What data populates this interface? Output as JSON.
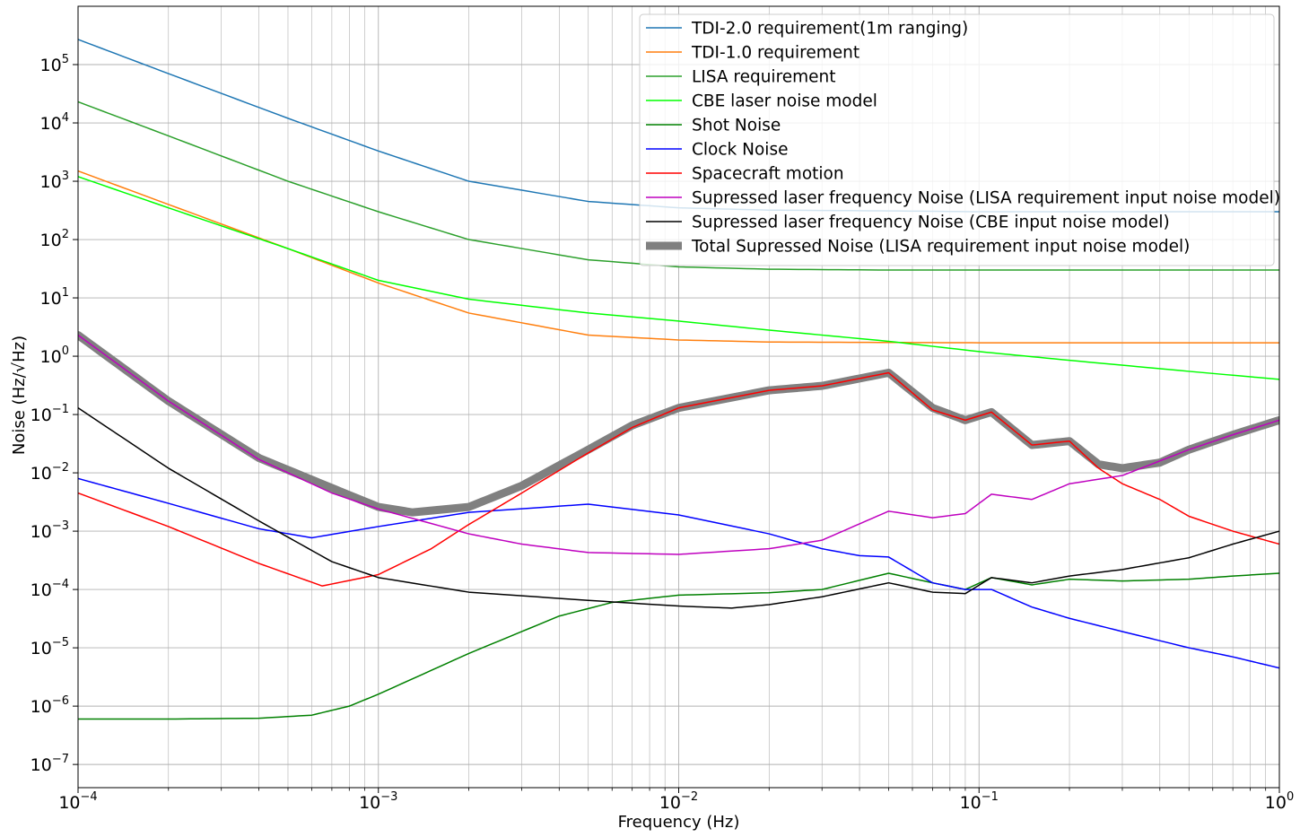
{
  "chart_data": {
    "type": "line",
    "title": "",
    "xlabel": "Frequency (Hz)",
    "ylabel": "Noise (Hz/√Hz)",
    "xscale": "log",
    "yscale": "log",
    "xlim": [
      0.0001,
      1
    ],
    "ylim": [
      4e-08,
      1000000.0
    ],
    "grid": true,
    "legend_position": "top-right",
    "x_ticks": [
      {
        "value": 0.0001,
        "base": "10",
        "exp": "−4"
      },
      {
        "value": 0.001,
        "base": "10",
        "exp": "−3"
      },
      {
        "value": 0.01,
        "base": "10",
        "exp": "−2"
      },
      {
        "value": 0.1,
        "base": "10",
        "exp": "−1"
      },
      {
        "value": 1,
        "base": "10",
        "exp": "0"
      }
    ],
    "y_ticks": [
      {
        "value": 1e-07,
        "base": "10",
        "exp": "−7"
      },
      {
        "value": 1e-06,
        "base": "10",
        "exp": "−6"
      },
      {
        "value": 1e-05,
        "base": "10",
        "exp": "−5"
      },
      {
        "value": 0.0001,
        "base": "10",
        "exp": "−4"
      },
      {
        "value": 0.001,
        "base": "10",
        "exp": "−3"
      },
      {
        "value": 0.01,
        "base": "10",
        "exp": "−2"
      },
      {
        "value": 0.1,
        "base": "10",
        "exp": "−1"
      },
      {
        "value": 1,
        "base": "10",
        "exp": "0"
      },
      {
        "value": 10,
        "base": "10",
        "exp": "1"
      },
      {
        "value": 100,
        "base": "10",
        "exp": "2"
      },
      {
        "value": 1000,
        "base": "10",
        "exp": "3"
      },
      {
        "value": 10000,
        "base": "10",
        "exp": "4"
      },
      {
        "value": 100000,
        "base": "10",
        "exp": "5"
      }
    ],
    "series": [
      {
        "name": "TDI-2.0 requirement(1m ranging)",
        "color": "#1f77b4",
        "width": 1.5,
        "x": [
          0.0001,
          0.0002,
          0.0005,
          0.001,
          0.002,
          0.005,
          0.01,
          0.02,
          0.05,
          0.1,
          0.2,
          0.5,
          1
        ],
        "y": [
          270000,
          70000,
          12000,
          3300,
          1000,
          450,
          350,
          320,
          310,
          300,
          300,
          300,
          300
        ]
      },
      {
        "name": "TDI-1.0 requirement",
        "color": "#ff7f0e",
        "width": 1.5,
        "x": [
          0.0001,
          0.0002,
          0.0005,
          0.001,
          0.002,
          0.005,
          0.01,
          0.02,
          0.05,
          0.1,
          0.2,
          0.5,
          1
        ],
        "y": [
          1500,
          400,
          70,
          18,
          5.5,
          2.3,
          1.9,
          1.75,
          1.72,
          1.7,
          1.7,
          1.7,
          1.7
        ]
      },
      {
        "name": "LISA requirement",
        "color": "#2ca02c",
        "width": 1.5,
        "x": [
          0.0001,
          0.0002,
          0.0005,
          0.001,
          0.002,
          0.005,
          0.01,
          0.02,
          0.05,
          0.1,
          0.2,
          0.5,
          1
        ],
        "y": [
          23000,
          6000,
          1000,
          300,
          100,
          45,
          34,
          31,
          30,
          30,
          30,
          30,
          30
        ]
      },
      {
        "name": "CBE laser noise model",
        "color": "#00ff00",
        "width": 1.5,
        "x": [
          0.0001,
          0.0002,
          0.0005,
          0.001,
          0.002,
          0.005,
          0.01,
          0.02,
          0.05,
          0.1,
          0.2,
          0.5,
          1
        ],
        "y": [
          1200,
          350,
          70,
          20,
          9.5,
          5.5,
          4,
          2.8,
          1.8,
          1.2,
          0.85,
          0.55,
          0.4
        ]
      },
      {
        "name": "Shot Noise",
        "color": "#008000",
        "width": 1.5,
        "x": [
          0.0001,
          0.0002,
          0.0004,
          0.0006,
          0.0008,
          0.001,
          0.002,
          0.004,
          0.006,
          0.01,
          0.02,
          0.03,
          0.05,
          0.07,
          0.09,
          0.11,
          0.15,
          0.2,
          0.3,
          0.5,
          0.7,
          1
        ],
        "y": [
          6e-07,
          6e-07,
          6.2e-07,
          7e-07,
          1e-06,
          1.6e-06,
          8e-06,
          3.5e-05,
          6e-05,
          8e-05,
          8.8e-05,
          0.0001,
          0.00019,
          0.00013,
          0.0001,
          0.00016,
          0.00012,
          0.00015,
          0.00014,
          0.00015,
          0.00017,
          0.00019
        ]
      },
      {
        "name": "Clock Noise",
        "color": "#0000ff",
        "width": 1.5,
        "x": [
          0.0001,
          0.0002,
          0.0004,
          0.0006,
          0.001,
          0.002,
          0.005,
          0.01,
          0.02,
          0.03,
          0.04,
          0.05,
          0.07,
          0.09,
          0.11,
          0.15,
          0.2,
          0.3,
          0.5,
          0.7,
          1
        ],
        "y": [
          0.008,
          0.003,
          0.0011,
          0.00077,
          0.0012,
          0.0021,
          0.0029,
          0.0019,
          0.0009,
          0.0005,
          0.00038,
          0.00036,
          0.00013,
          0.0001,
          0.0001,
          5e-05,
          3.2e-05,
          1.9e-05,
          1e-05,
          7e-06,
          4.5e-06
        ]
      },
      {
        "name": "Spacecraft motion",
        "color": "#ff0000",
        "width": 1.5,
        "x": [
          0.0001,
          0.0002,
          0.0004,
          0.00065,
          0.001,
          0.0015,
          0.002,
          0.003,
          0.005,
          0.007,
          0.01,
          0.02,
          0.03,
          0.05,
          0.07,
          0.09,
          0.11,
          0.15,
          0.2,
          0.25,
          0.3,
          0.4,
          0.5,
          0.7,
          1
        ],
        "y": [
          0.0045,
          0.0012,
          0.00028,
          0.000115,
          0.00018,
          0.0005,
          0.0013,
          0.0045,
          0.022,
          0.06,
          0.13,
          0.26,
          0.31,
          0.52,
          0.12,
          0.08,
          0.11,
          0.03,
          0.035,
          0.012,
          0.0065,
          0.0035,
          0.0018,
          0.001,
          0.0006
        ]
      },
      {
        "name": "Supressed laser frequency Noise (LISA requirement input noise model)",
        "color": "#bf00bf",
        "width": 1.5,
        "x": [
          0.0001,
          0.0002,
          0.0004,
          0.0007,
          0.001,
          0.002,
          0.003,
          0.005,
          0.01,
          0.02,
          0.03,
          0.05,
          0.07,
          0.09,
          0.11,
          0.15,
          0.2,
          0.3,
          0.5,
          0.7,
          1
        ],
        "y": [
          2.3,
          0.17,
          0.017,
          0.0045,
          0.0024,
          0.0009,
          0.0006,
          0.00043,
          0.0004,
          0.0005,
          0.0007,
          0.0022,
          0.0017,
          0.002,
          0.0043,
          0.0035,
          0.0065,
          0.009,
          0.025,
          0.045,
          0.08
        ]
      },
      {
        "name": "Supressed laser frequency Noise (CBE input noise model)",
        "color": "#000000",
        "width": 1.5,
        "x": [
          0.0001,
          0.0002,
          0.0004,
          0.0007,
          0.001,
          0.002,
          0.005,
          0.01,
          0.015,
          0.02,
          0.03,
          0.05,
          0.07,
          0.09,
          0.11,
          0.15,
          0.2,
          0.3,
          0.5,
          0.7,
          1
        ],
        "y": [
          0.13,
          0.012,
          0.0015,
          0.0003,
          0.00016,
          9e-05,
          6.5e-05,
          5.2e-05,
          4.8e-05,
          5.5e-05,
          7.5e-05,
          0.00013,
          9e-05,
          8.5e-05,
          0.00016,
          0.00013,
          0.00017,
          0.00022,
          0.00035,
          0.0006,
          0.001
        ]
      },
      {
        "name": "Total Supressed Noise  (LISA requirement input noise model)",
        "color": "#808080",
        "width": 9,
        "x": [
          0.0001,
          0.0002,
          0.0004,
          0.0007,
          0.001,
          0.0013,
          0.002,
          0.003,
          0.005,
          0.007,
          0.01,
          0.02,
          0.03,
          0.05,
          0.07,
          0.09,
          0.11,
          0.15,
          0.2,
          0.25,
          0.3,
          0.4,
          0.5,
          0.7,
          1
        ],
        "y": [
          2.3,
          0.17,
          0.018,
          0.0055,
          0.0026,
          0.0021,
          0.0026,
          0.006,
          0.025,
          0.065,
          0.13,
          0.26,
          0.31,
          0.52,
          0.13,
          0.08,
          0.11,
          0.03,
          0.035,
          0.014,
          0.012,
          0.015,
          0.025,
          0.045,
          0.08
        ]
      }
    ]
  }
}
